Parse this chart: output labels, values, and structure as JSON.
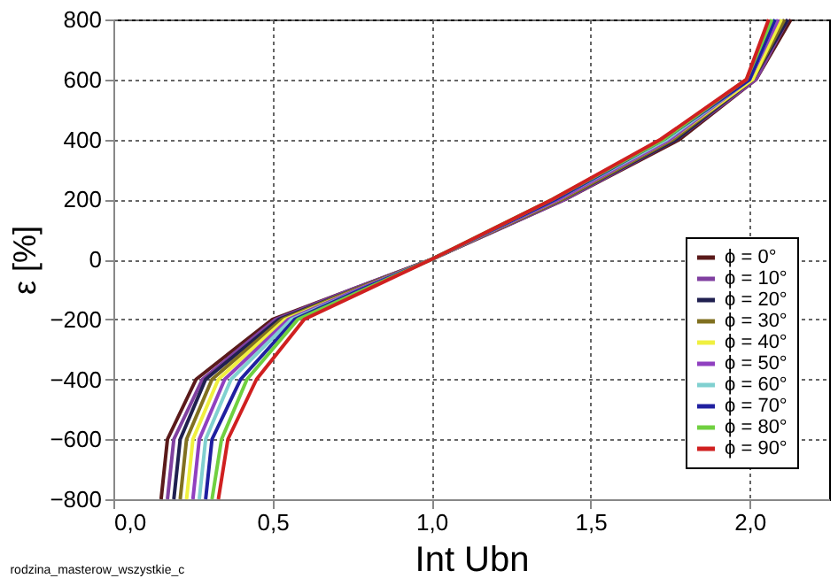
{
  "chart_data": {
    "type": "line",
    "xlabel": "Int Ubn",
    "ylabel": "ε [%]",
    "annotations": [
      "rodzina_masterow_wszystkie_c"
    ],
    "xlim": [
      0,
      2.25
    ],
    "xticks": [
      {
        "value": 0,
        "label": "0,0"
      },
      {
        "value": 0.5,
        "label": "0,5"
      },
      {
        "value": 1.0,
        "label": "1,0"
      },
      {
        "value": 1.5,
        "label": "1,5"
      },
      {
        "value": 2.0,
        "label": "2,0"
      }
    ],
    "ylim": [
      -800,
      800
    ],
    "yticks": [
      -800,
      -600,
      -400,
      -200,
      0,
      200,
      400,
      600,
      800
    ],
    "grid": true,
    "legend": "bottom right",
    "marker": "none",
    "line_style": "solid",
    "series": [
      {
        "name": "ϕ = 0°",
        "color": "#5a1a1a",
        "x": [
          0.15,
          0.17,
          0.26,
          0.5,
          0.75,
          1.0,
          1.42,
          1.78,
          2.02,
          2.13
        ],
        "values": [
          -800,
          -600,
          -400,
          -200,
          -100,
          0,
          200,
          400,
          600,
          800
        ]
      },
      {
        "name": "ϕ = 10°",
        "color": "#8040a0",
        "x": [
          0.17,
          0.19,
          0.28,
          0.51,
          0.75,
          1.0,
          1.42,
          1.77,
          2.02,
          2.12
        ],
        "values": [
          -800,
          -600,
          -400,
          -200,
          -100,
          0,
          200,
          400,
          600,
          800
        ]
      },
      {
        "name": "ϕ = 20°",
        "color": "#202050",
        "x": [
          0.19,
          0.21,
          0.29,
          0.52,
          0.76,
          1.0,
          1.41,
          1.77,
          2.01,
          2.12
        ],
        "values": [
          -800,
          -600,
          -400,
          -200,
          -100,
          0,
          200,
          400,
          600,
          800
        ]
      },
      {
        "name": "ϕ = 30°",
        "color": "#807020",
        "x": [
          0.21,
          0.23,
          0.31,
          0.53,
          0.76,
          1.0,
          1.41,
          1.76,
          2.01,
          2.11
        ],
        "values": [
          -800,
          -600,
          -400,
          -200,
          -100,
          0,
          200,
          400,
          600,
          800
        ]
      },
      {
        "name": "ϕ = 40°",
        "color": "#f0f040",
        "x": [
          0.23,
          0.25,
          0.33,
          0.54,
          0.77,
          1.0,
          1.4,
          1.75,
          2.01,
          2.1
        ],
        "values": [
          -800,
          -600,
          -400,
          -200,
          -100,
          0,
          200,
          400,
          600,
          800
        ]
      },
      {
        "name": "ϕ = 50°",
        "color": "#9040c0",
        "x": [
          0.25,
          0.27,
          0.35,
          0.55,
          0.77,
          1.0,
          1.4,
          1.75,
          2.0,
          2.09
        ],
        "values": [
          -800,
          -600,
          -400,
          -200,
          -100,
          0,
          200,
          400,
          600,
          800
        ]
      },
      {
        "name": "ϕ = 60°",
        "color": "#80d0d0",
        "x": [
          0.27,
          0.29,
          0.37,
          0.56,
          0.78,
          1.0,
          1.39,
          1.74,
          2.0,
          2.08
        ],
        "values": [
          -800,
          -600,
          -400,
          -200,
          -100,
          0,
          200,
          400,
          600,
          800
        ]
      },
      {
        "name": "ϕ = 70°",
        "color": "#2020a0",
        "x": [
          0.29,
          0.31,
          0.4,
          0.57,
          0.78,
          1.0,
          1.39,
          1.73,
          2.0,
          2.08
        ],
        "values": [
          -800,
          -600,
          -400,
          -200,
          -100,
          0,
          200,
          400,
          600,
          800
        ]
      },
      {
        "name": "ϕ = 80°",
        "color": "#70d040",
        "x": [
          0.31,
          0.34,
          0.42,
          0.58,
          0.79,
          1.0,
          1.38,
          1.73,
          1.99,
          2.07
        ],
        "values": [
          -800,
          -600,
          -400,
          -200,
          -100,
          0,
          200,
          400,
          600,
          800
        ]
      },
      {
        "name": "ϕ = 90°",
        "color": "#d02020",
        "x": [
          0.33,
          0.36,
          0.45,
          0.6,
          0.8,
          1.0,
          1.38,
          1.72,
          1.99,
          2.06
        ],
        "values": [
          -800,
          -600,
          -400,
          -200,
          -100,
          0,
          200,
          400,
          600,
          800
        ]
      }
    ]
  }
}
